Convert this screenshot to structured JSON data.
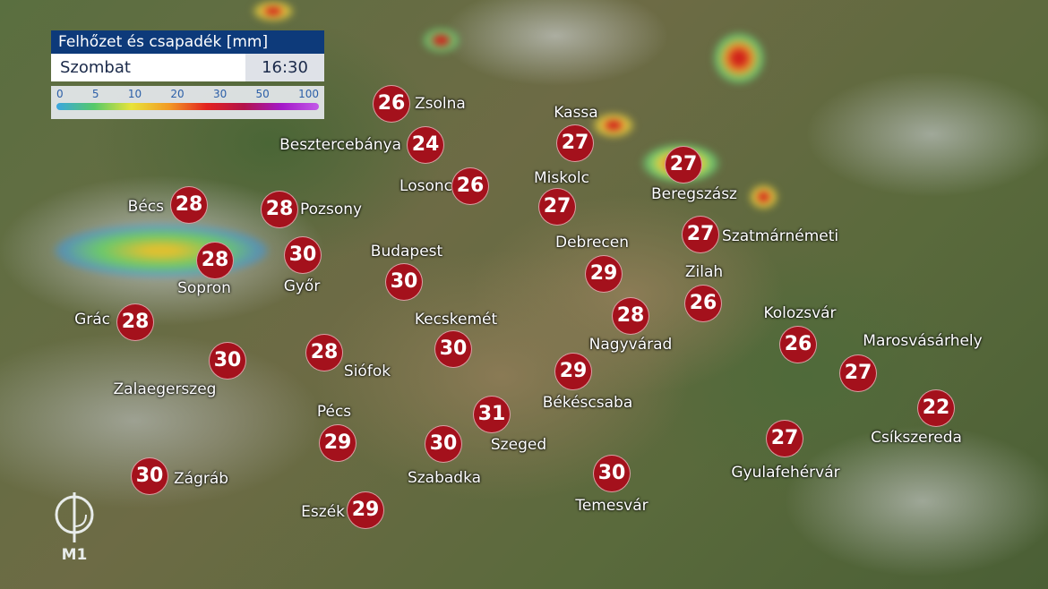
{
  "legend": {
    "title": "Felhőzet és csapadék [mm]",
    "day": "Szombat",
    "time": "16:30",
    "scale": [
      "0",
      "5",
      "10",
      "20",
      "30",
      "50",
      "100"
    ]
  },
  "logo": {
    "text": "M1"
  },
  "cities": [
    {
      "name": "Zsolna",
      "temp": "26"
    },
    {
      "name": "Besztercebánya",
      "temp": "24"
    },
    {
      "name": "Kassa",
      "temp": "27"
    },
    {
      "name": "Beregszász",
      "temp": "27"
    },
    {
      "name": "Losonc",
      "temp": "26"
    },
    {
      "name": "Miskolc",
      "temp": "27"
    },
    {
      "name": "Bécs",
      "temp": "28"
    },
    {
      "name": "Pozsony",
      "temp": "28"
    },
    {
      "name": "Szatmárnémeti",
      "temp": "27"
    },
    {
      "name": "Budapest",
      "temp": "30"
    },
    {
      "name": "Debrecen",
      "temp": "29"
    },
    {
      "name": "Győr",
      "temp": "30"
    },
    {
      "name": "Sopron",
      "temp": "28"
    },
    {
      "name": "Zilah",
      "temp": "26"
    },
    {
      "name": "Grác",
      "temp": "28"
    },
    {
      "name": "Kecskemét",
      "temp": "30"
    },
    {
      "name": "Nagyvárad",
      "temp": "28"
    },
    {
      "name": "Kolozsvár",
      "temp": "26"
    },
    {
      "name": "Marosvásárhely",
      "temp": "27"
    },
    {
      "name": "Zalaegerszeg",
      "temp": "30"
    },
    {
      "name": "Siófok",
      "temp": "28"
    },
    {
      "name": "Békéscsaba",
      "temp": "29"
    },
    {
      "name": "Csíkszereda",
      "temp": "22"
    },
    {
      "name": "Pécs",
      "temp": "29"
    },
    {
      "name": "Szeged",
      "temp": "31"
    },
    {
      "name": "Szabadka",
      "temp": "30"
    },
    {
      "name": "Gyulafehérvár",
      "temp": "27"
    },
    {
      "name": "Temesvár",
      "temp": "30"
    },
    {
      "name": "Zágráb",
      "temp": "30"
    },
    {
      "name": "Eszék",
      "temp": "29"
    }
  ]
}
